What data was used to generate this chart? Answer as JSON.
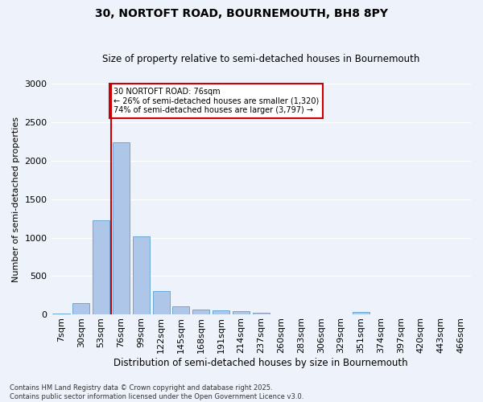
{
  "title": "30, NORTOFT ROAD, BOURNEMOUTH, BH8 8PY",
  "subtitle": "Size of property relative to semi-detached houses in Bournemouth",
  "xlabel": "Distribution of semi-detached houses by size in Bournemouth",
  "ylabel": "Number of semi-detached properties",
  "footer_line1": "Contains HM Land Registry data © Crown copyright and database right 2025.",
  "footer_line2": "Contains public sector information licensed under the Open Government Licence v3.0.",
  "categories": [
    "7sqm",
    "30sqm",
    "53sqm",
    "76sqm",
    "99sqm",
    "122sqm",
    "145sqm",
    "168sqm",
    "191sqm",
    "214sqm",
    "237sqm",
    "260sqm",
    "283sqm",
    "306sqm",
    "329sqm",
    "351sqm",
    "374sqm",
    "397sqm",
    "420sqm",
    "443sqm",
    "466sqm"
  ],
  "values": [
    15,
    150,
    1230,
    2240,
    1020,
    310,
    105,
    60,
    55,
    40,
    20,
    5,
    0,
    0,
    0,
    30,
    0,
    0,
    0,
    0,
    0
  ],
  "bar_color": "#aec6e8",
  "bar_edge_color": "#5a9fd4",
  "red_line_index": 3,
  "annotation_title": "30 NORTOFT ROAD: 76sqm",
  "annotation_line1": "← 26% of semi-detached houses are smaller (1,320)",
  "annotation_line2": "74% of semi-detached houses are larger (3,797) →",
  "ylim": [
    0,
    3000
  ],
  "yticks": [
    0,
    500,
    1000,
    1500,
    2000,
    2500,
    3000
  ],
  "background_color": "#eef2fb",
  "grid_color": "#ffffff",
  "annotation_box_color": "#ffffff",
  "annotation_box_edge": "#cc0000",
  "red_line_color": "#cc0000",
  "title_fontsize": 10,
  "subtitle_fontsize": 8.5,
  "xlabel_fontsize": 8.5,
  "ylabel_fontsize": 8,
  "tick_fontsize": 8,
  "footer_fontsize": 6,
  "annotation_fontsize": 7
}
